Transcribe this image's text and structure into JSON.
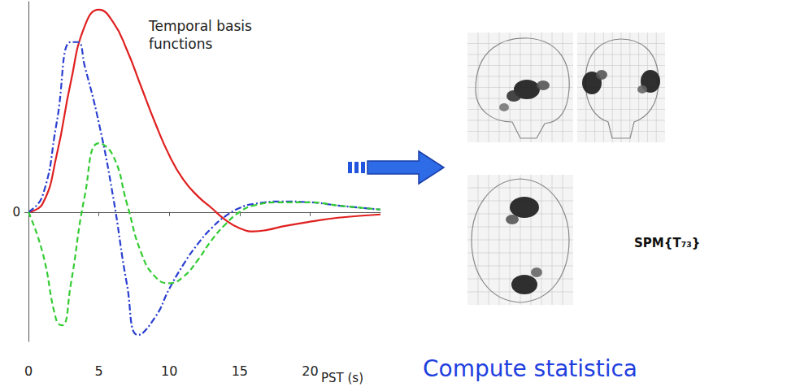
{
  "chart_data": {
    "type": "line",
    "title": "Temporal basis functions",
    "x_label": "PST (s)",
    "xlim": [
      0,
      25
    ],
    "xticks": [
      0,
      5,
      10,
      15,
      20
    ],
    "ylim": [
      -1.6,
      2.6
    ],
    "yticks": [
      0
    ],
    "grid": false,
    "series": [
      {
        "color": "#e02020",
        "line_style": "solid",
        "x": [
          0,
          1,
          2,
          3,
          4,
          5,
          6,
          7,
          8,
          9,
          10,
          11,
          12,
          13,
          14,
          15,
          16,
          17,
          18,
          20,
          22,
          25
        ],
        "values": [
          0,
          0.1,
          0.7,
          1.6,
          2.3,
          2.5,
          2.35,
          2.0,
          1.55,
          1.1,
          0.7,
          0.4,
          0.2,
          0.05,
          -0.1,
          -0.2,
          -0.24,
          -0.22,
          -0.18,
          -0.12,
          -0.07,
          -0.03
        ]
      },
      {
        "color": "#2a3fd0",
        "line_style": "dashdot",
        "x": [
          0,
          1,
          2,
          3,
          3.5,
          4,
          5,
          6,
          7,
          7.8,
          9,
          10,
          11,
          12,
          13,
          14,
          15,
          16,
          18,
          20,
          22,
          25
        ],
        "values": [
          0,
          0.2,
          1.1,
          2.1,
          2.1,
          1.8,
          1.1,
          0.2,
          -0.9,
          -1.52,
          -1.3,
          -0.95,
          -0.65,
          -0.4,
          -0.2,
          -0.05,
          0.05,
          0.1,
          0.13,
          0.12,
          0.08,
          0.03
        ]
      },
      {
        "color": "#33cc33",
        "line_style": "dashed",
        "x": [
          0,
          1,
          2,
          2.4,
          3,
          4,
          5,
          6,
          7,
          8,
          9,
          10,
          11,
          12,
          13,
          14,
          15,
          16,
          18,
          20,
          22,
          25
        ],
        "values": [
          0,
          -0.5,
          -1.35,
          -1.4,
          -0.9,
          0.2,
          0.85,
          0.7,
          0.1,
          -0.5,
          -0.8,
          -0.88,
          -0.8,
          -0.6,
          -0.35,
          -0.15,
          0,
          0.08,
          0.12,
          0.12,
          0.08,
          0.03
        ]
      }
    ]
  },
  "statistic_label": "SPM{T₇₃}",
  "caption": "Compute statistica"
}
